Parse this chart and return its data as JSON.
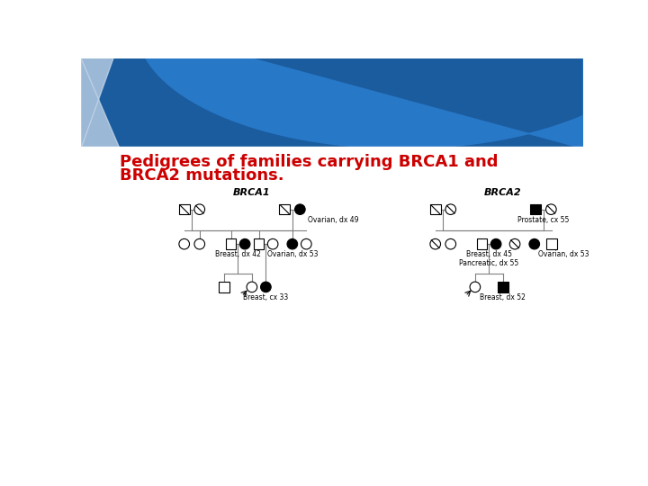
{
  "title_line1": "Pedigrees of families carrying BRCA1 and",
  "title_line2": "BRCA2 mutations.",
  "title_color": "#cc0000",
  "title_fontsize": 13,
  "bg_color": "#ffffff",
  "brca1_label": "BRCA1",
  "brca2_label": "BRCA2",
  "annotations": {
    "brca1": {
      "ovarian_49": "Ovarian, dx 49",
      "breast_42": "Breast, dx 42",
      "ovarian_53": "Ovarian, dx 53",
      "breast_33": "Breast, cx 33"
    },
    "brca2": {
      "prostate_55": "Prostate, cx 55",
      "breast_45": "Breast, dx 45\nPancreatic, dx 55",
      "ovarian_53": "Ovarian, dx 53",
      "breast_52": "Breast, dx 52"
    }
  },
  "header_dark": "#1a5c9e",
  "header_mid": "#2878c8",
  "header_light": "#c8d8ea"
}
